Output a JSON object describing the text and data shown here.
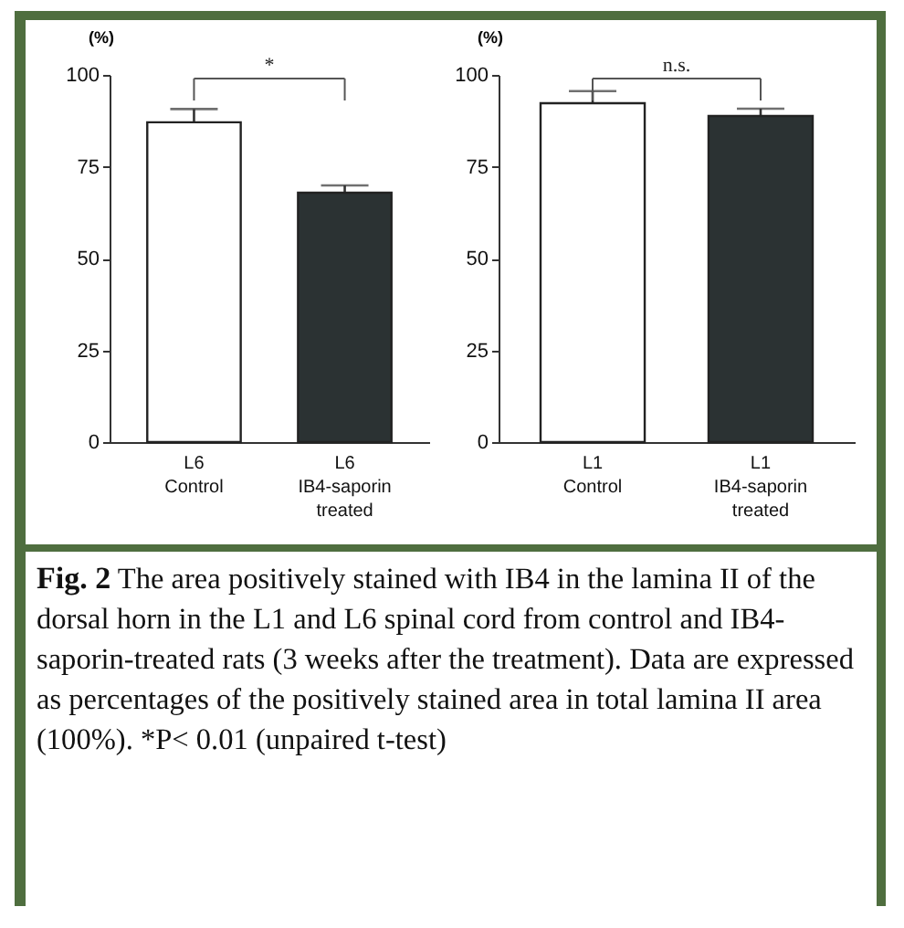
{
  "chart_data": [
    {
      "type": "bar",
      "ylabel": "(%)",
      "categories": [
        "L6\nControl",
        "L6\nIB4-saporin\ntreated"
      ],
      "values": [
        87.1,
        67.9
      ],
      "errors": [
        3.6,
        2.0
      ],
      "colors": [
        "#ffffff",
        "#2b3233"
      ],
      "ylim": [
        0,
        100
      ],
      "yticks": [
        0,
        25,
        50,
        75,
        100
      ],
      "annotations": [
        "*"
      ]
    },
    {
      "type": "bar",
      "ylabel": "(%)",
      "categories": [
        "L1\nControl",
        "L1\nIB4-saporin\ntreated"
      ],
      "values": [
        92.3,
        88.8
      ],
      "errors": [
        3.3,
        2.0
      ],
      "colors": [
        "#ffffff",
        "#2b3233"
      ],
      "ylim": [
        0,
        100
      ],
      "yticks": [
        0,
        25,
        50,
        75,
        100
      ],
      "annotations": [
        "n.s.",
        "Fig. 2",
        "The area positively stained with IB4 in the lamina II of the dorsal horn in the L1 and L6 spinal cord from control and IB4-saporin-treated rats (3 weeks after the treatment). Data are expressed as percentages of the positively stained area in total lamina II area (100%).   *P< 0.01 (unpaired t-test)"
      ]
    }
  ]
}
